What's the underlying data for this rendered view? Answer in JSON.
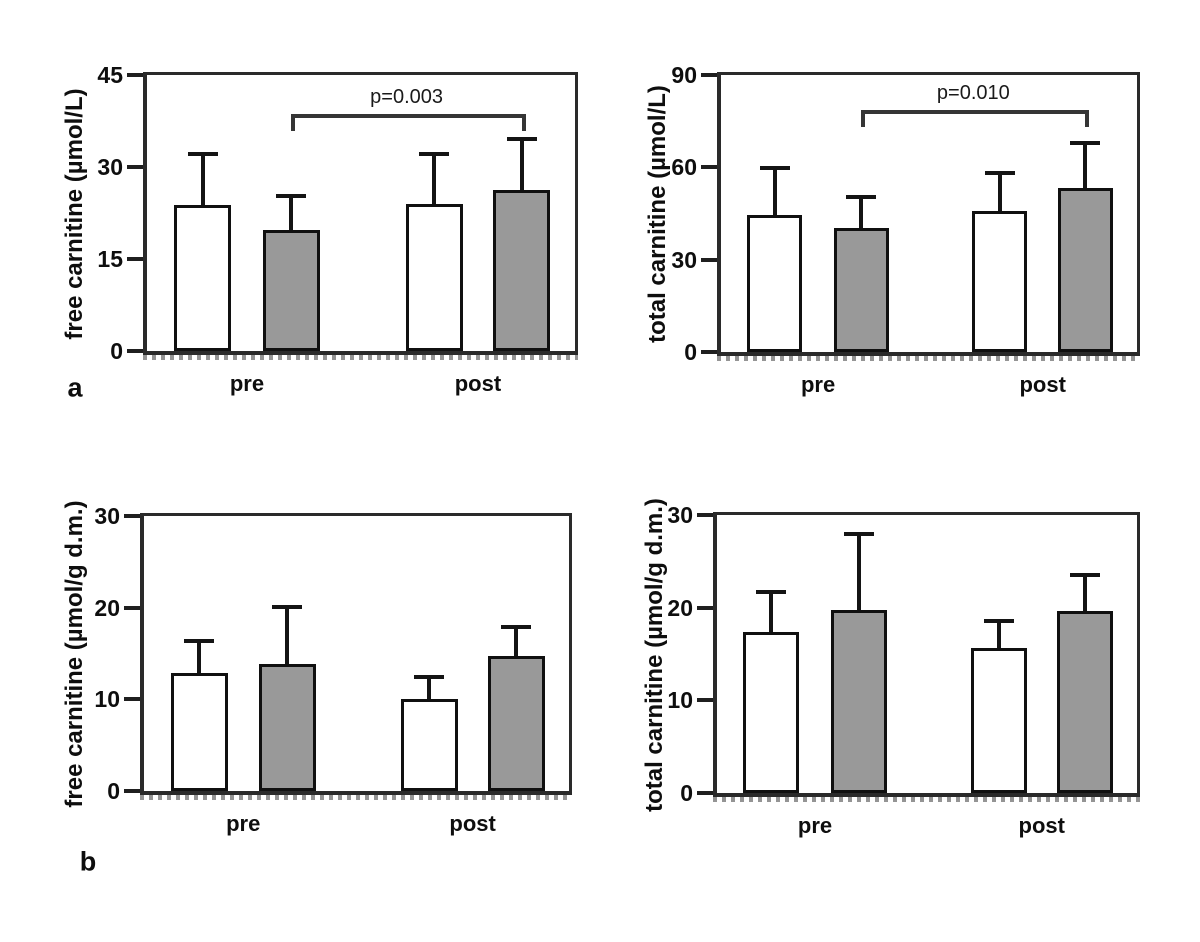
{
  "figure": {
    "background": "#ffffff",
    "bar_border_color": "#101010",
    "white_bar_fill": "#ffffff",
    "gray_bar_fill": "#999999"
  },
  "chart_data": [
    {
      "id": "free-carnitine-plasma",
      "type": "bar",
      "panel_letter": "a",
      "ylabel": "free carnitine (µmol/L)",
      "xlabel": "",
      "ylim": [
        0,
        45
      ],
      "yticks": [
        0,
        15,
        30,
        45
      ],
      "categories": [
        "pre",
        "post"
      ],
      "series": [
        {
          "name": "white",
          "fill": "#ffffff",
          "values": [
            23.8,
            23.9
          ],
          "upper_error": [
            32.2,
            32.1
          ]
        },
        {
          "name": "gray",
          "fill": "#999999",
          "values": [
            19.8,
            26.2
          ],
          "upper_error": [
            25.2,
            34.6
          ]
        }
      ],
      "significance": {
        "label": "p=0.003",
        "series": "gray",
        "from": "pre",
        "to": "post",
        "y_value": 38.6
      }
    },
    {
      "id": "total-carnitine-plasma",
      "type": "bar",
      "panel_letter": "",
      "ylabel": "total carnitine (µmol/L)",
      "xlabel": "",
      "ylim": [
        0,
        90
      ],
      "yticks": [
        0,
        30,
        60,
        90
      ],
      "categories": [
        "pre",
        "post"
      ],
      "series": [
        {
          "name": "white",
          "fill": "#ffffff",
          "values": [
            44.5,
            45.8
          ],
          "upper_error": [
            59.8,
            58.0
          ]
        },
        {
          "name": "gray",
          "fill": "#999999",
          "values": [
            40.3,
            53.3
          ],
          "upper_error": [
            50.5,
            68.0
          ]
        }
      ],
      "significance": {
        "label": "p=0.010",
        "series": "gray",
        "from": "pre",
        "to": "post",
        "y_value": 78.5
      }
    },
    {
      "id": "free-carnitine-muscle",
      "type": "bar",
      "panel_letter": "b",
      "ylabel": "free carnitine (µmol/g d.m.)",
      "xlabel": "",
      "ylim": [
        0,
        30
      ],
      "yticks": [
        0,
        10,
        20,
        30
      ],
      "categories": [
        "pre",
        "post"
      ],
      "series": [
        {
          "name": "white",
          "fill": "#ffffff",
          "values": [
            12.9,
            10.0
          ],
          "upper_error": [
            16.4,
            12.4
          ]
        },
        {
          "name": "gray",
          "fill": "#999999",
          "values": [
            13.9,
            14.7
          ],
          "upper_error": [
            20.1,
            17.9
          ]
        }
      ],
      "significance": null
    },
    {
      "id": "total-carnitine-muscle",
      "type": "bar",
      "panel_letter": "",
      "ylabel": "total carnitine (µmol/g d.m.)",
      "xlabel": "",
      "ylim": [
        0,
        30
      ],
      "yticks": [
        0,
        10,
        20,
        30
      ],
      "categories": [
        "pre",
        "post"
      ],
      "series": [
        {
          "name": "white",
          "fill": "#ffffff",
          "values": [
            17.4,
            15.6
          ],
          "upper_error": [
            21.7,
            18.6
          ]
        },
        {
          "name": "gray",
          "fill": "#999999",
          "values": [
            19.8,
            19.6
          ],
          "upper_error": [
            28.0,
            23.5
          ]
        }
      ],
      "significance": null
    }
  ]
}
